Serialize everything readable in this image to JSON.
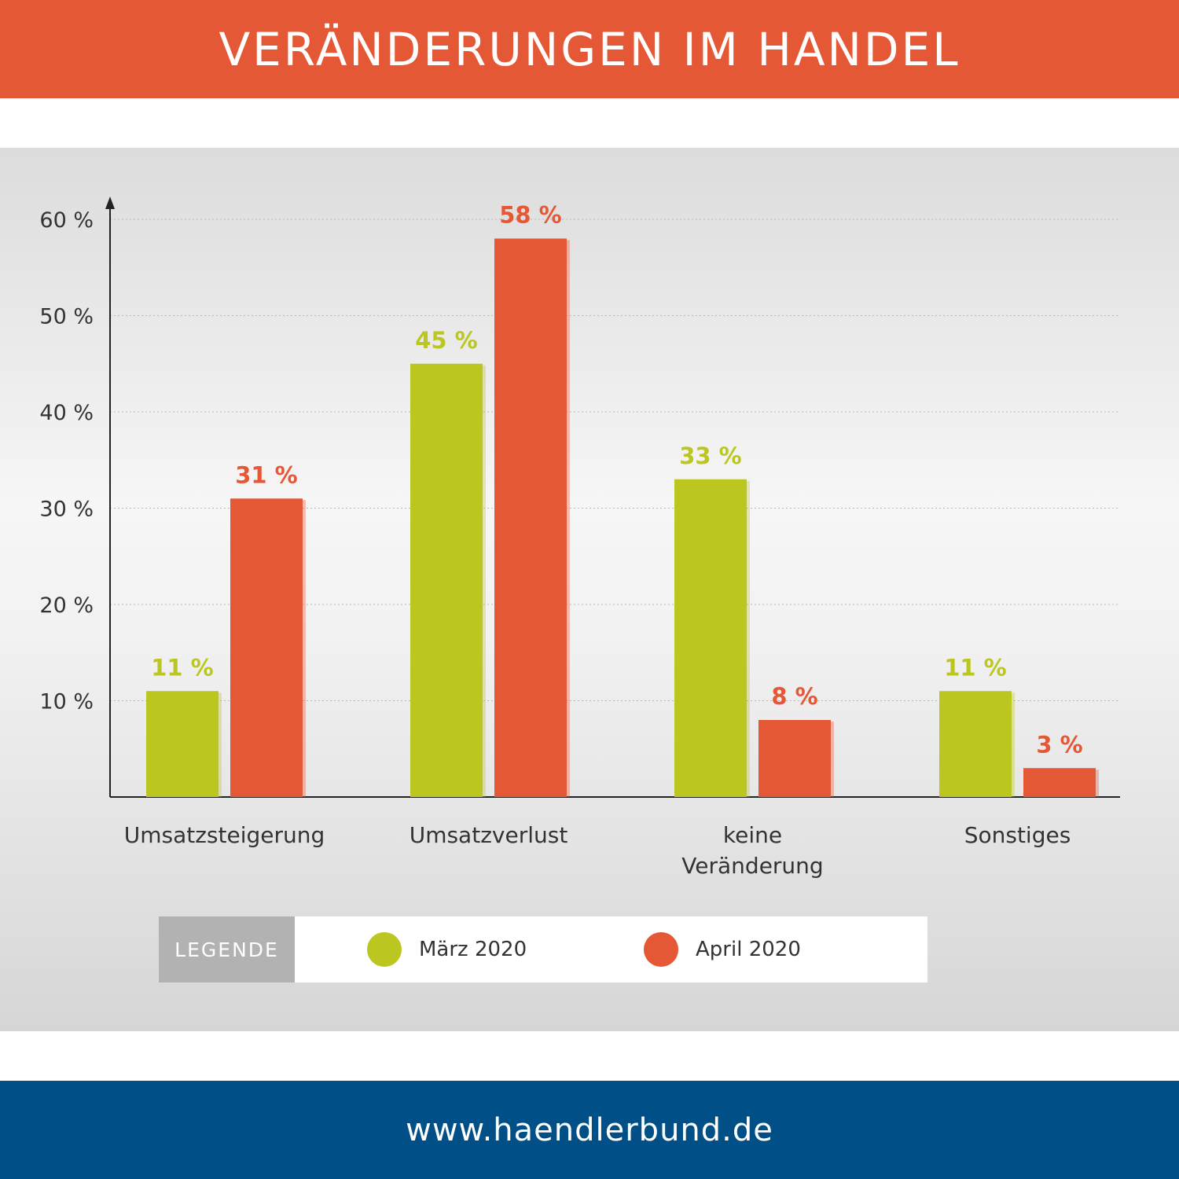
{
  "header": {
    "title": "VERÄNDERUNGEN IM HANDEL"
  },
  "footer": {
    "url": "www.haendlerbund.de"
  },
  "legend": {
    "label": "LEGENDE",
    "items": [
      {
        "name": "März 2020",
        "color": "#bcc621"
      },
      {
        "name": "April 2020",
        "color": "#e55836"
      }
    ]
  },
  "chart_data": {
    "type": "bar",
    "categories": [
      [
        "Umsatzsteigerung"
      ],
      [
        "Umsatzverlust"
      ],
      [
        "keine",
        "Veränderung"
      ],
      [
        "Sonstiges"
      ]
    ],
    "series": [
      {
        "name": "März 2020",
        "color": "#bcc621",
        "values": [
          11,
          45,
          33,
          11
        ],
        "labels": [
          "11 %",
          "45 %",
          "33 %",
          "11 %"
        ]
      },
      {
        "name": "April 2020",
        "color": "#e55836",
        "values": [
          31,
          58,
          8,
          3
        ],
        "labels": [
          "31 %",
          "58 %",
          "8 %",
          "3 %"
        ]
      }
    ],
    "ylim": [
      0,
      60
    ],
    "yticks": [
      10,
      20,
      30,
      40,
      50,
      60
    ],
    "ytick_labels": [
      "10 %",
      "20 %",
      "30 %",
      "40 %",
      "50 %",
      "60 %"
    ],
    "grid": true,
    "legend_position": "bottom"
  }
}
